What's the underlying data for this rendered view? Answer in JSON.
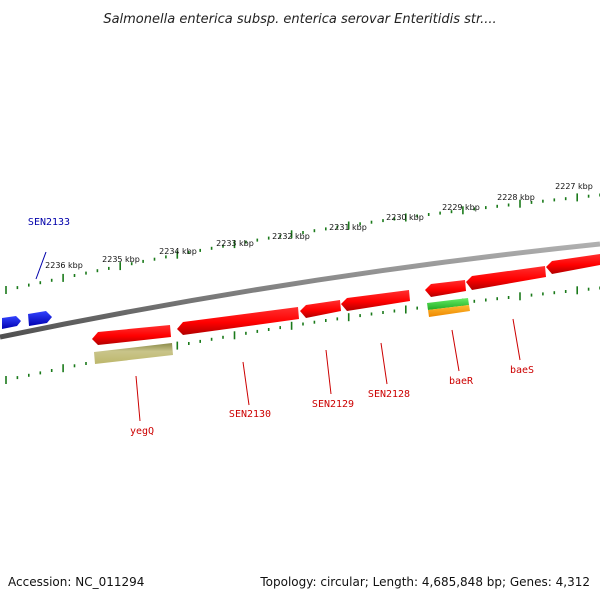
{
  "title": "Salmonella enterica subsp. enterica serovar Enteritidis str....",
  "footer": {
    "accession": "Accession: NC_011294",
    "summary": "Topology: circular; Length: 4,685,848 bp; Genes: 4,312"
  },
  "colors": {
    "backbone": "#808080",
    "tick": "#1a7a1a",
    "gene_red": "#ff0000",
    "gene_blue": "#0000ff",
    "gene_olive": "#bdb76b",
    "gene_green": "#33cc33",
    "gene_orange": "#ff9900",
    "label_red": "#cc0000",
    "label_blue": "#0000aa"
  },
  "scale": {
    "unit": "kbp",
    "ticks": [
      {
        "label": "2227 kbp"
      },
      {
        "label": "2228 kbp"
      },
      {
        "label": "2229 kbp"
      },
      {
        "label": "2230 kbp"
      },
      {
        "label": "2231 kbp"
      },
      {
        "label": "2232 kbp"
      },
      {
        "label": "2233 kbp"
      },
      {
        "label": "2234 kbp"
      },
      {
        "label": "2235 kbp"
      },
      {
        "label": "2236 kbp"
      }
    ]
  },
  "genes": [
    {
      "label": "SEN2133"
    },
    {
      "label": "yegQ"
    },
    {
      "label": "SEN2130"
    },
    {
      "label": "SEN2129"
    },
    {
      "label": "SEN2128"
    },
    {
      "label": "baeR"
    },
    {
      "label": "baeS"
    }
  ]
}
